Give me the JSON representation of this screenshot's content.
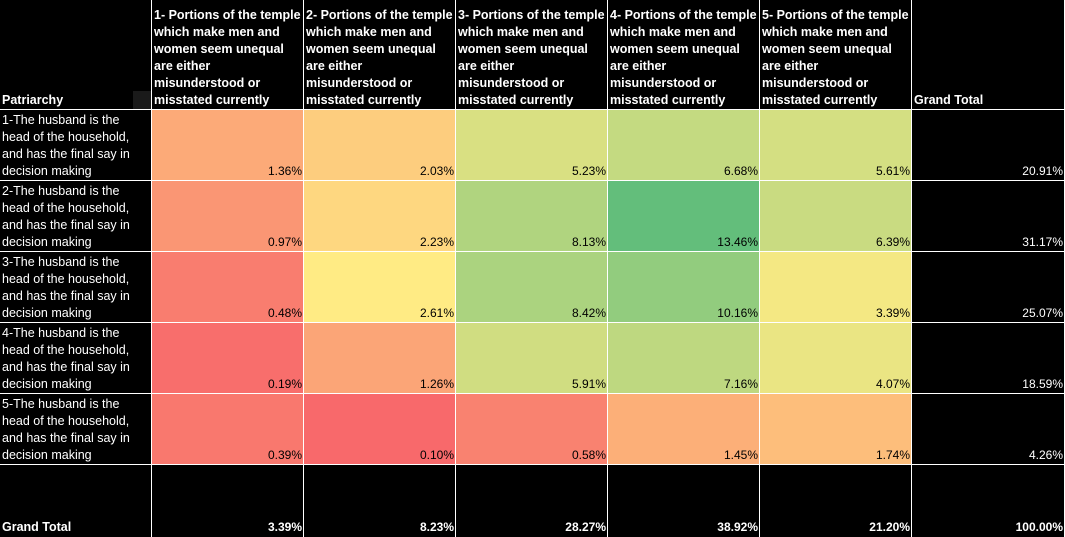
{
  "chart_data": {
    "type": "heatmap",
    "row_header": "Patriarchy",
    "columns": [
      "1- Portions of the temple which make men and women seem unequal are either misunderstood or misstated currently",
      "2- Portions of the temple which make men and women seem unequal are either misunderstood or misstated currently",
      "3- Portions of the temple which make men and women seem unequal are either misunderstood or misstated currently",
      "4- Portions of the temple which make men and women seem unequal are either misunderstood or misstated currently",
      "5- Portions of the temple which make men and women seem unequal are either misunderstood or misstated currently"
    ],
    "total_label": "Grand Total",
    "rows": [
      "1-The husband is the head of the household, and has the final say in decision making",
      "2-The husband is the head of the household, and has the final say in decision making",
      "3-The husband is the head of the household, and has the final say in decision making",
      "4-The husband is the head of the household, and has the final say in decision making",
      "5-The husband is the head of the household, and has the final say in decision making"
    ],
    "values": [
      [
        1.36,
        2.03,
        5.23,
        6.68,
        5.61
      ],
      [
        0.97,
        2.23,
        8.13,
        13.46,
        6.39
      ],
      [
        0.48,
        2.61,
        8.42,
        10.16,
        3.39
      ],
      [
        0.19,
        1.26,
        5.91,
        7.16,
        4.07
      ],
      [
        0.39,
        0.1,
        0.58,
        1.45,
        1.74
      ]
    ],
    "value_labels": [
      [
        "1.36%",
        "2.03%",
        "5.23%",
        "6.68%",
        "5.61%"
      ],
      [
        "0.97%",
        "2.23%",
        "8.13%",
        "13.46%",
        "6.39%"
      ],
      [
        "0.48%",
        "2.61%",
        "8.42%",
        "10.16%",
        "3.39%"
      ],
      [
        "0.19%",
        "1.26%",
        "5.91%",
        "7.16%",
        "4.07%"
      ],
      [
        "0.39%",
        "0.10%",
        "0.58%",
        "1.45%",
        "1.74%"
      ]
    ],
    "row_totals": [
      "20.91%",
      "31.17%",
      "25.07%",
      "18.59%",
      "4.26%"
    ],
    "column_totals": [
      "3.39%",
      "8.23%",
      "28.27%",
      "38.92%",
      "21.20%"
    ],
    "grand_total": "100.00%",
    "color_scale": {
      "low": "#f8696b",
      "mid": "#ffeb84",
      "high": "#63be7b"
    }
  }
}
